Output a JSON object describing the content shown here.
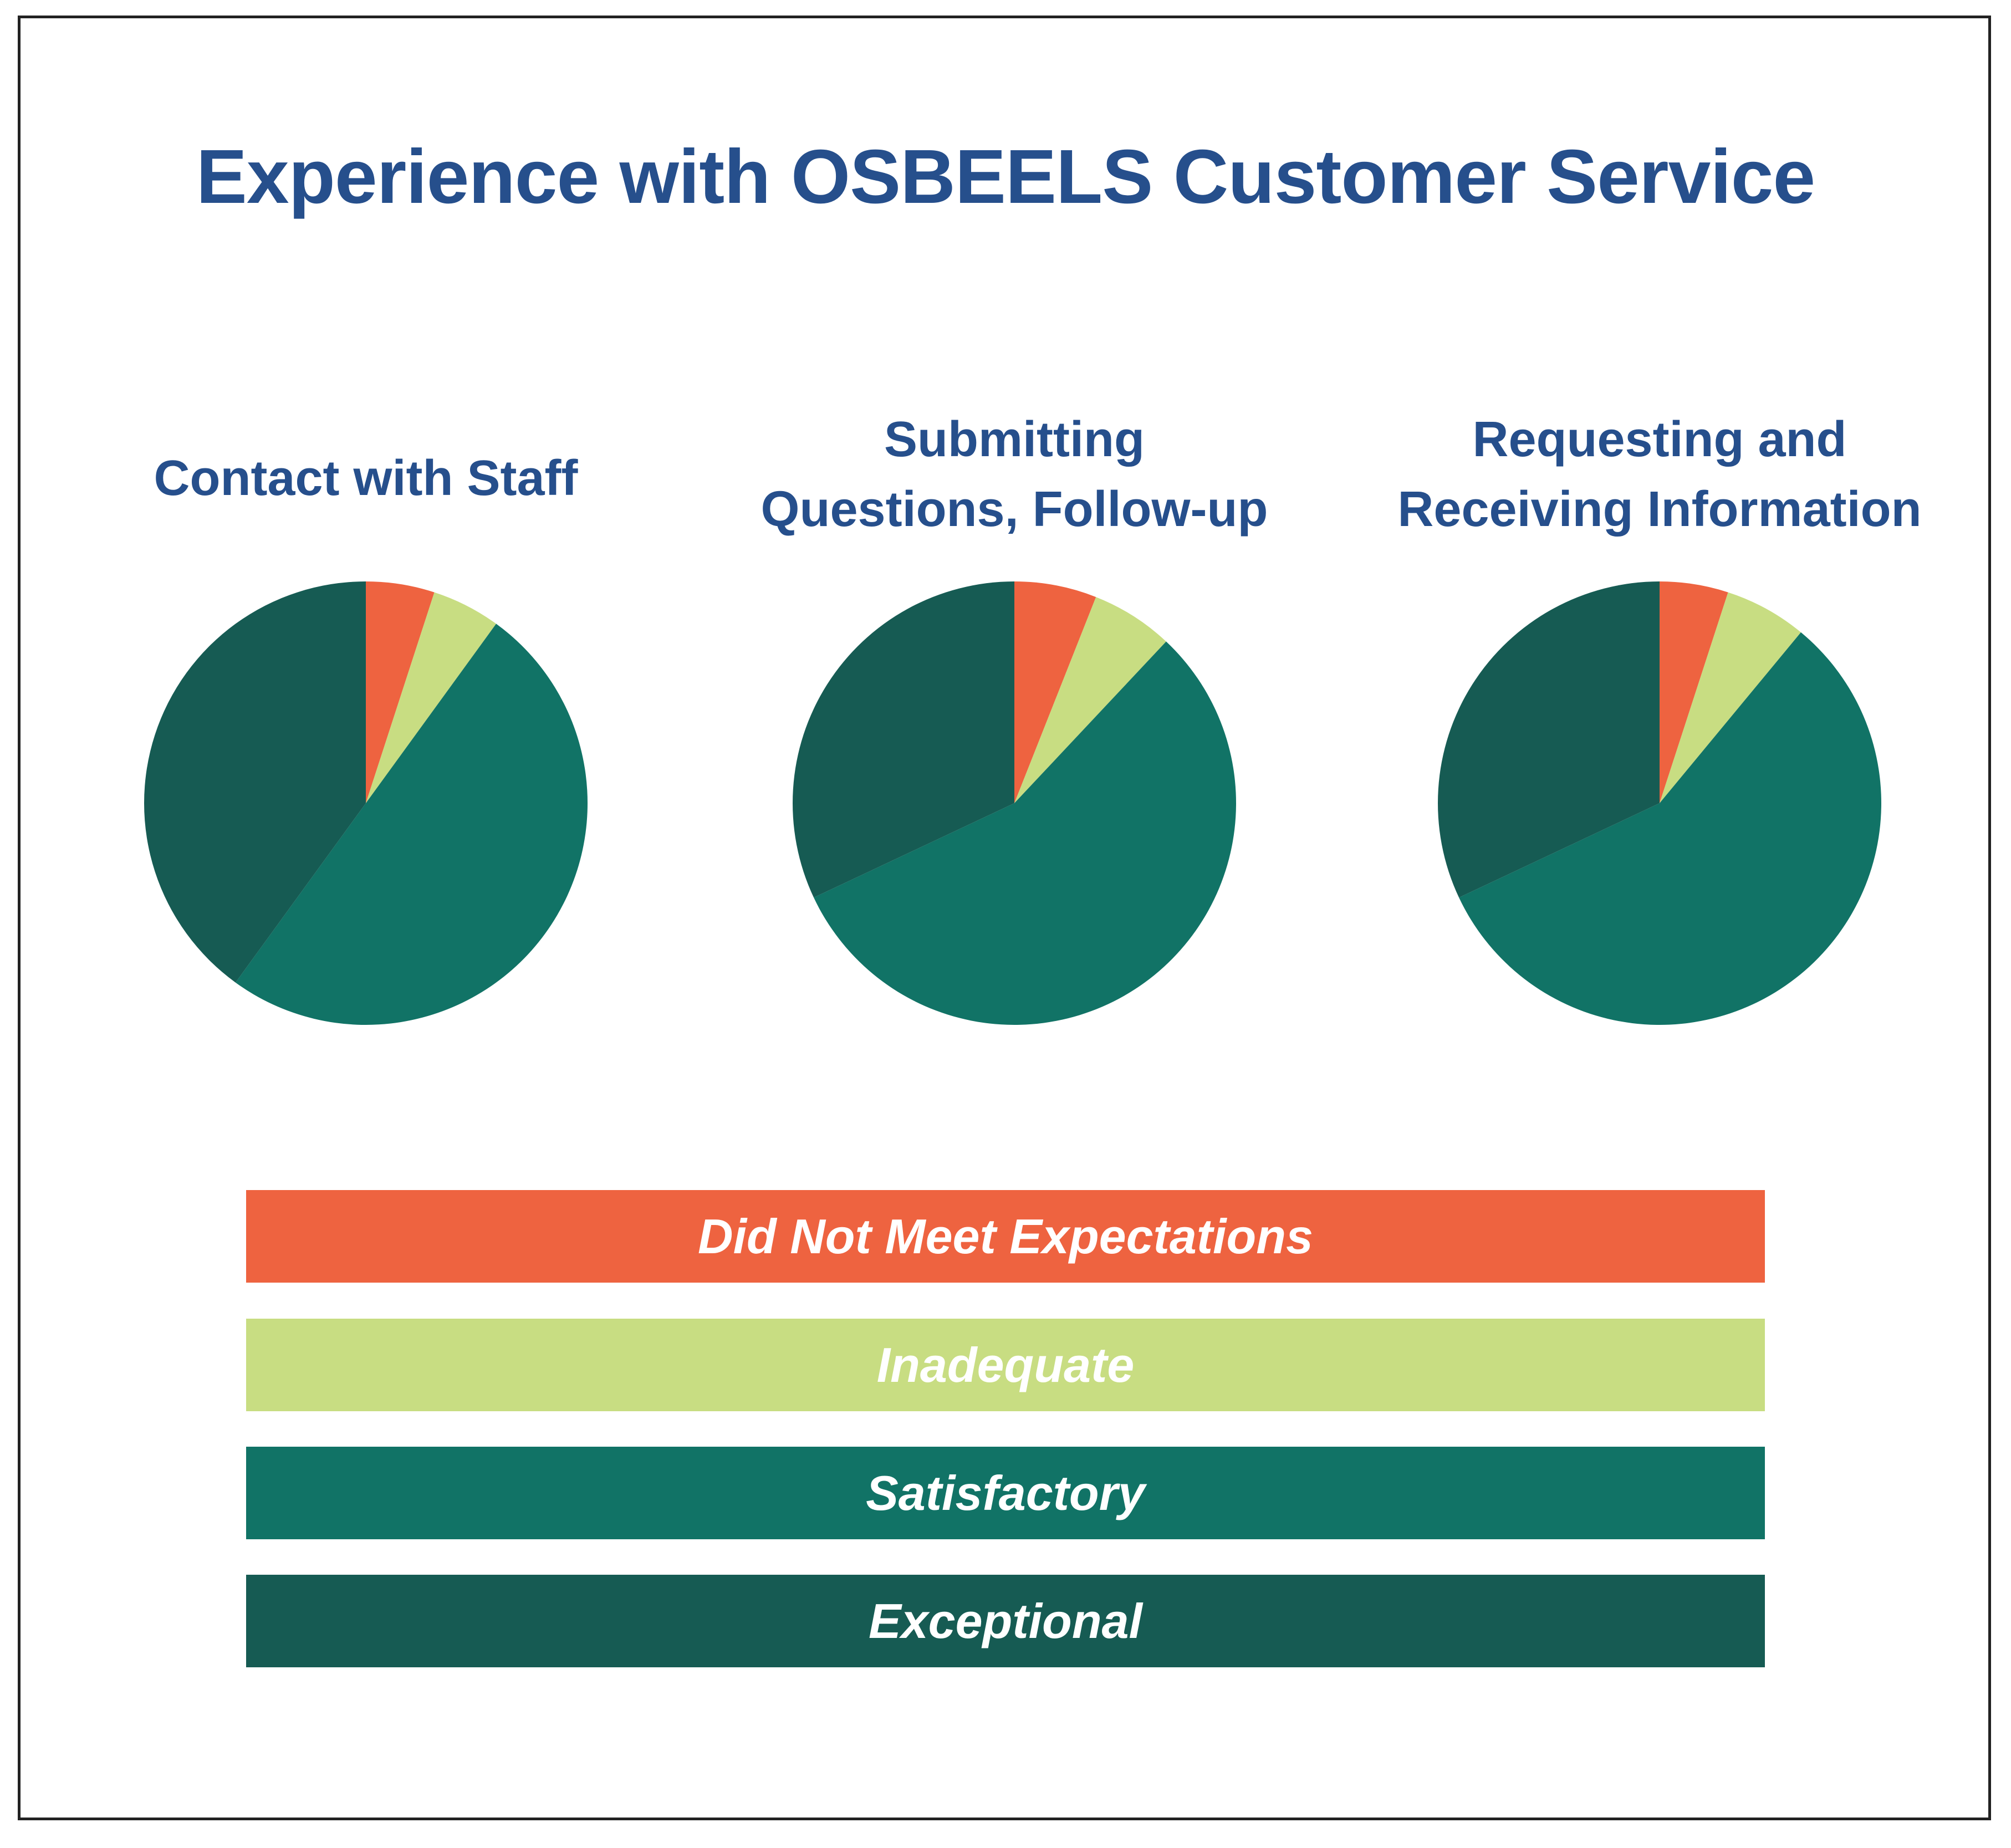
{
  "chart_data": {
    "type": "pie",
    "title": "Experience with OSBEELS Customer Service",
    "categories": [
      "Did Not Meet Expectations",
      "Inadequate",
      "Satisfactory",
      "Exceptional"
    ],
    "colors": [
      "#EE6340",
      "#C8DD82",
      "#117366",
      "#165B53"
    ],
    "legend_position": "bottom",
    "charts": [
      {
        "title_lines": [
          "Contact with Staff"
        ],
        "values": [
          5,
          5,
          50,
          40
        ]
      },
      {
        "title_lines": [
          "Submitting",
          "Questions, Follow-up"
        ],
        "values": [
          6,
          6,
          56,
          32
        ]
      },
      {
        "title_lines": [
          "Requesting and",
          "Receiving Information"
        ],
        "values": [
          5,
          6,
          57,
          32
        ]
      }
    ]
  }
}
